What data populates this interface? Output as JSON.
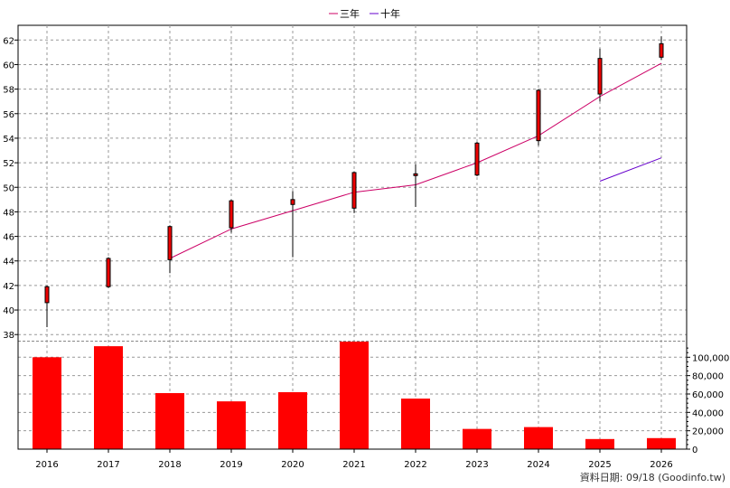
{
  "legend": [
    {
      "label": "三年",
      "color": "#cc0066"
    },
    {
      "label": "十年",
      "color": "#6600cc"
    }
  ],
  "footer": "資料日期: 09/18  (Goodinfo.tw)",
  "chart_data": {
    "type": "candlestick+line+bar",
    "categories": [
      "2016",
      "2017",
      "2018",
      "2019",
      "2020",
      "2021",
      "2022",
      "2023",
      "2024",
      "2025",
      "2026"
    ],
    "price_axis": {
      "ticks": [
        38,
        40,
        42,
        44,
        46,
        48,
        50,
        52,
        54,
        56,
        58,
        60,
        62
      ],
      "ylim": [
        37.5,
        63.2
      ]
    },
    "candles": [
      {
        "open": 40.6,
        "close": 41.9,
        "high": 42.0,
        "low": 38.6
      },
      {
        "open": 41.9,
        "close": 44.2,
        "high": 44.3,
        "low": 41.8
      },
      {
        "open": 44.1,
        "close": 46.8,
        "high": 46.9,
        "low": 43.0
      },
      {
        "open": 46.7,
        "close": 48.9,
        "high": 49.0,
        "low": 46.3
      },
      {
        "open": 48.6,
        "close": 49.0,
        "high": 49.7,
        "low": 44.3
      },
      {
        "open": 48.3,
        "close": 51.2,
        "high": 51.3,
        "low": 47.9
      },
      {
        "open": 51.0,
        "close": 51.1,
        "high": 51.9,
        "low": 48.4
      },
      {
        "open": 51.0,
        "close": 53.6,
        "high": 53.7,
        "low": 50.9
      },
      {
        "open": 53.8,
        "close": 57.9,
        "high": 58.0,
        "low": 53.4
      },
      {
        "open": 57.6,
        "close": 60.5,
        "high": 61.3,
        "low": 57.0
      },
      {
        "open": 60.6,
        "close": 61.7,
        "high": 62.3,
        "low": 60.4
      }
    ],
    "series": [
      {
        "name": "三年",
        "values": [
          null,
          null,
          44.2,
          46.6,
          48.1,
          49.6,
          50.2,
          52.0,
          54.2,
          57.4,
          60.1
        ]
      },
      {
        "name": "十年",
        "values": [
          null,
          null,
          null,
          null,
          null,
          null,
          null,
          null,
          null,
          50.5,
          52.4
        ]
      }
    ],
    "volume_axis": {
      "ticks": [
        0,
        20000,
        40000,
        60000,
        80000,
        100000
      ],
      "tick_labels": [
        "0",
        "20,000",
        "40,000",
        "60,000",
        "80,000",
        "100,000"
      ],
      "ylim": [
        0,
        118000
      ]
    },
    "volume": [
      100000,
      112000,
      61000,
      52000,
      62000,
      117000,
      55000,
      22000,
      24000,
      11000,
      12000
    ],
    "grid": true
  }
}
